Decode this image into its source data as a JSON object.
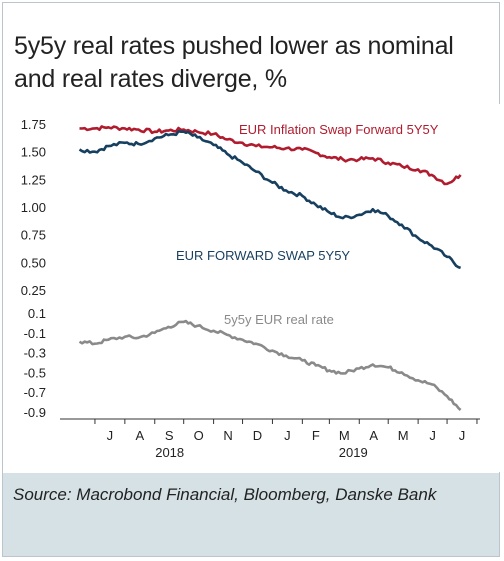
{
  "header": {
    "title": "5y5y real rates pushed lower as nominal and real rates diverge, %"
  },
  "footer": {
    "source": "Source: Macrobond Financial, Bloomberg, Danske Bank"
  },
  "chart_data": [
    {
      "type": "line",
      "title": "",
      "xlabel": "",
      "ylabel": "",
      "x": [
        "2018-06-15",
        "2018-07-01",
        "2018-07-15",
        "2018-08-01",
        "2018-08-15",
        "2018-09-01",
        "2018-09-15",
        "2018-10-01",
        "2018-10-15",
        "2018-11-01",
        "2018-11-15",
        "2018-12-01",
        "2018-12-15",
        "2019-01-01",
        "2019-01-15",
        "2019-02-01",
        "2019-02-15",
        "2019-03-01",
        "2019-03-15",
        "2019-04-01",
        "2019-04-15",
        "2019-05-01",
        "2019-05-15",
        "2019-06-01",
        "2019-06-15",
        "2019-07-01",
        "2019-07-15"
      ],
      "ylim": [
        0.25,
        1.75
      ],
      "yticks": [
        "1.75",
        "1.50",
        "1.25",
        "1.00",
        "0.75",
        "0.50",
        "0.25"
      ],
      "grid": false,
      "series": [
        {
          "name": "EUR Inflation Swap Forward 5Y5Y",
          "color": "#b01c2e",
          "values": [
            1.71,
            1.71,
            1.72,
            1.71,
            1.7,
            1.68,
            1.69,
            1.7,
            1.68,
            1.66,
            1.61,
            1.58,
            1.55,
            1.54,
            1.53,
            1.52,
            1.49,
            1.45,
            1.43,
            1.43,
            1.44,
            1.4,
            1.37,
            1.34,
            1.29,
            1.21,
            1.29
          ]
        },
        {
          "name": "EUR FORWARD SWAP 5Y5Y",
          "color": "#173f5f",
          "values": [
            1.52,
            1.5,
            1.55,
            1.58,
            1.57,
            1.62,
            1.65,
            1.68,
            1.63,
            1.56,
            1.48,
            1.4,
            1.32,
            1.22,
            1.15,
            1.1,
            1.02,
            0.95,
            0.9,
            0.93,
            0.98,
            0.92,
            0.84,
            0.72,
            0.65,
            0.55,
            0.45
          ]
        }
      ]
    },
    {
      "type": "line",
      "title": "",
      "xlabel": "",
      "ylabel": "",
      "x": [
        "2018-06-15",
        "2018-07-01",
        "2018-07-15",
        "2018-08-01",
        "2018-08-15",
        "2018-09-01",
        "2018-09-15",
        "2018-10-01",
        "2018-10-15",
        "2018-11-01",
        "2018-11-15",
        "2018-12-01",
        "2018-12-15",
        "2019-01-01",
        "2019-01-15",
        "2019-02-01",
        "2019-02-15",
        "2019-03-01",
        "2019-03-15",
        "2019-04-01",
        "2019-04-15",
        "2019-05-01",
        "2019-05-15",
        "2019-06-01",
        "2019-06-15",
        "2019-07-01",
        "2019-07-15"
      ],
      "ylim": [
        -0.9,
        0.1
      ],
      "yticks": [
        "0.1",
        "-0.1",
        "-0.3",
        "-0.5",
        "-0.7",
        "-0.9"
      ],
      "grid": false,
      "series": [
        {
          "name": "5y5y EUR real rate",
          "color": "#8a8a8a",
          "values": [
            -0.19,
            -0.21,
            -0.17,
            -0.14,
            -0.15,
            -0.1,
            -0.04,
            0.01,
            -0.03,
            -0.08,
            -0.12,
            -0.17,
            -0.21,
            -0.28,
            -0.33,
            -0.38,
            -0.43,
            -0.48,
            -0.51,
            -0.46,
            -0.42,
            -0.45,
            -0.5,
            -0.58,
            -0.62,
            -0.74,
            -0.88
          ]
        }
      ]
    }
  ],
  "x_axis": {
    "months": [
      "J",
      "A",
      "S",
      "O",
      "N",
      "D",
      "J",
      "F",
      "M",
      "A",
      "M",
      "J",
      "J"
    ],
    "years": [
      "2018",
      "2019"
    ]
  }
}
